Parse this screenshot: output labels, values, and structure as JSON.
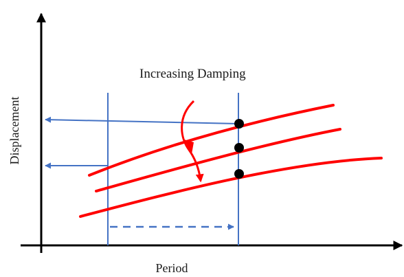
{
  "annotation": {
    "text": "Increasing Damping"
  },
  "axes": {
    "xlabel": "Period",
    "ylabel": "Displacement"
  },
  "colors": {
    "axis": "#000000",
    "curve": "#ff0000",
    "guide": "#4472c4",
    "marker": "#000000"
  },
  "curves": {
    "count": 3,
    "marker_count": 3,
    "order": "top-to-bottom = lowest to highest damping"
  }
}
